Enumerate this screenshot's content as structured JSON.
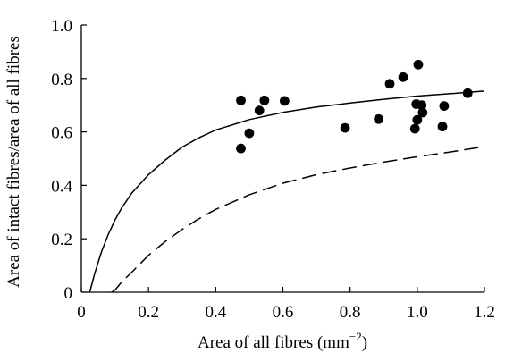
{
  "chart_data": {
    "type": "scatter",
    "xlabel": "Area of all fibres (mm",
    "xlabel_sup": "−2",
    "xlabel_close": ")",
    "ylabel": "Area of intact fibres/area of all fibres",
    "xlim": [
      0,
      1.2
    ],
    "ylim": [
      0,
      1.0
    ],
    "grid": false,
    "x_ticks": [
      0,
      0.2,
      0.4,
      0.6,
      0.8,
      1.0,
      1.2
    ],
    "x_tick_labels": [
      "0",
      "0.2",
      "0.4",
      "0.6",
      "0.8",
      "1.0",
      "1.2"
    ],
    "y_ticks": [
      0,
      0.2,
      0.4,
      0.6,
      0.8,
      1.0
    ],
    "y_tick_labels": [
      "0",
      "0.2",
      "0.4",
      "0.6",
      "0.8",
      "1.0"
    ],
    "series": [
      {
        "type": "scatter",
        "color": "#000000",
        "points": [
          {
            "x": 0.475,
            "y": 0.718
          },
          {
            "x": 0.475,
            "y": 0.538
          },
          {
            "x": 0.5,
            "y": 0.595
          },
          {
            "x": 0.53,
            "y": 0.68
          },
          {
            "x": 0.545,
            "y": 0.718
          },
          {
            "x": 0.605,
            "y": 0.716
          },
          {
            "x": 0.785,
            "y": 0.615
          },
          {
            "x": 0.885,
            "y": 0.648
          },
          {
            "x": 0.918,
            "y": 0.78
          },
          {
            "x": 0.958,
            "y": 0.805
          },
          {
            "x": 0.993,
            "y": 0.612
          },
          {
            "x": 0.997,
            "y": 0.704
          },
          {
            "x": 1.0,
            "y": 0.645
          },
          {
            "x": 1.003,
            "y": 0.852
          },
          {
            "x": 1.013,
            "y": 0.7
          },
          {
            "x": 1.016,
            "y": 0.672
          },
          {
            "x": 1.075,
            "y": 0.62
          },
          {
            "x": 1.08,
            "y": 0.697
          },
          {
            "x": 1.15,
            "y": 0.745
          }
        ]
      },
      {
        "type": "line",
        "style": "solid",
        "color": "#000000",
        "x": [
          0.025,
          0.04,
          0.06,
          0.08,
          0.1,
          0.12,
          0.15,
          0.2,
          0.25,
          0.3,
          0.35,
          0.4,
          0.5,
          0.6,
          0.7,
          0.8,
          0.9,
          1.0,
          1.1,
          1.2
        ],
        "y": [
          0,
          0.071,
          0.151,
          0.216,
          0.27,
          0.315,
          0.371,
          0.44,
          0.495,
          0.543,
          0.578,
          0.607,
          0.646,
          0.673,
          0.693,
          0.708,
          0.722,
          0.734,
          0.743,
          0.753
        ]
      },
      {
        "type": "line",
        "style": "dashed",
        "color": "#000000",
        "x": [
          0.09,
          0.1,
          0.12,
          0.15,
          0.2,
          0.25,
          0.3,
          0.35,
          0.4,
          0.5,
          0.6,
          0.7,
          0.8,
          0.9,
          1.0,
          1.1,
          1.2
        ],
        "y": [
          0,
          0.008,
          0.038,
          0.075,
          0.138,
          0.19,
          0.235,
          0.275,
          0.31,
          0.365,
          0.408,
          0.44,
          0.465,
          0.487,
          0.507,
          0.525,
          0.545
        ]
      }
    ]
  }
}
